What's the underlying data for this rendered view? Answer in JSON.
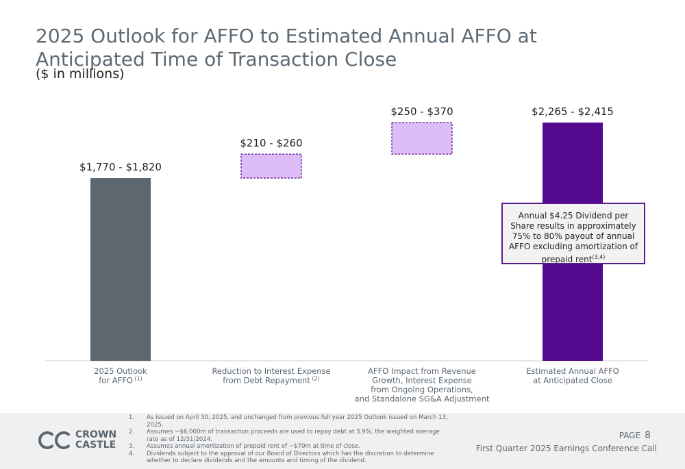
{
  "header": {
    "title": "2025 Outlook for AFFO to Estimated Annual AFFO at Anticipated Time of Transaction Close",
    "subtitle": "($ in millions)"
  },
  "chart_data": {
    "type": "bar",
    "subtype": "waterfall",
    "unit": "$ in millions",
    "categories": [
      "2025 Outlook for AFFO(1)",
      "Reduction to Interest Expense from Debt Repayment(2)",
      "AFFO Impact from Revenue Growth, Interest Expense from Ongoing Operations, and Standalone SG&A Adjustment",
      "Estimated Annual AFFO at Anticipated Close"
    ],
    "category_lines": [
      [
        "2025 Outlook",
        "for AFFO"
      ],
      [
        "Reduction to Interest Expense",
        "from Debt Repayment"
      ],
      [
        "AFFO Impact from Revenue",
        "Growth, Interest Expense",
        "from Ongoing Operations,",
        "and Standalone SG&A Adjustment"
      ],
      [
        "Estimated Annual AFFO",
        "at Anticipated Close"
      ]
    ],
    "category_footnotes": [
      "(1)",
      "(2)",
      "",
      ""
    ],
    "bars": [
      {
        "kind": "total",
        "low": 1770,
        "high": 1820,
        "base": 0,
        "top": 1795,
        "label": "$1,770 - $1,820",
        "color": "#5c6770"
      },
      {
        "kind": "increase",
        "low": 210,
        "high": 260,
        "base": 1795,
        "top": 2030,
        "label": "$210 - $260",
        "color": "#dcbdf7",
        "border": "#5a1a8c",
        "dashed": true
      },
      {
        "kind": "increase",
        "low": 250,
        "high": 370,
        "base": 2030,
        "top": 2340,
        "label": "$250 - $370",
        "color": "#dcbdf7",
        "border": "#5a1a8c",
        "dashed": true
      },
      {
        "kind": "total",
        "low": 2265,
        "high": 2415,
        "base": 0,
        "top": 2340,
        "label": "$2,265 - $2,415",
        "color": "#530a8e"
      }
    ],
    "ylim": [
      0,
      2340
    ],
    "grid": false,
    "legend": "none"
  },
  "callout": {
    "text": "Annual $4.25 Dividend per Share results in approximately 75% to 80% payout of annual AFFO excluding amortization of prepaid rent",
    "footnote": "(3,4)"
  },
  "footnotes": [
    {
      "num": "1.",
      "text": "As issued on April 30, 2025, and unchanged from previous full year 2025 Outlook issued on March 13, 2025."
    },
    {
      "num": "2.",
      "text": "Assumes ~$6,000m of transaction proceeds are used to repay debt at 3.9%, the weighted average rate as of 12/31/2024."
    },
    {
      "num": "3.",
      "text": "Assumes annual amortization of prepaid rent of ~$70m at time of close."
    },
    {
      "num": "4.",
      "text": "Dividends subject to the approval of our Board of Directors which has the discretion to determine whether to declare dividends and the amounts and timing of the dividend."
    }
  ],
  "logo": {
    "line1": "CROWN",
    "line2": "CASTLE"
  },
  "page": {
    "label": "PAGE",
    "number": "8"
  },
  "footer_text": "First Quarter 2025 Earnings Conference Call",
  "colors": {
    "title": "#5d6a74",
    "accent": "#530a8e",
    "light_purple": "#dcbdf7",
    "gray_bar": "#5c6770"
  }
}
